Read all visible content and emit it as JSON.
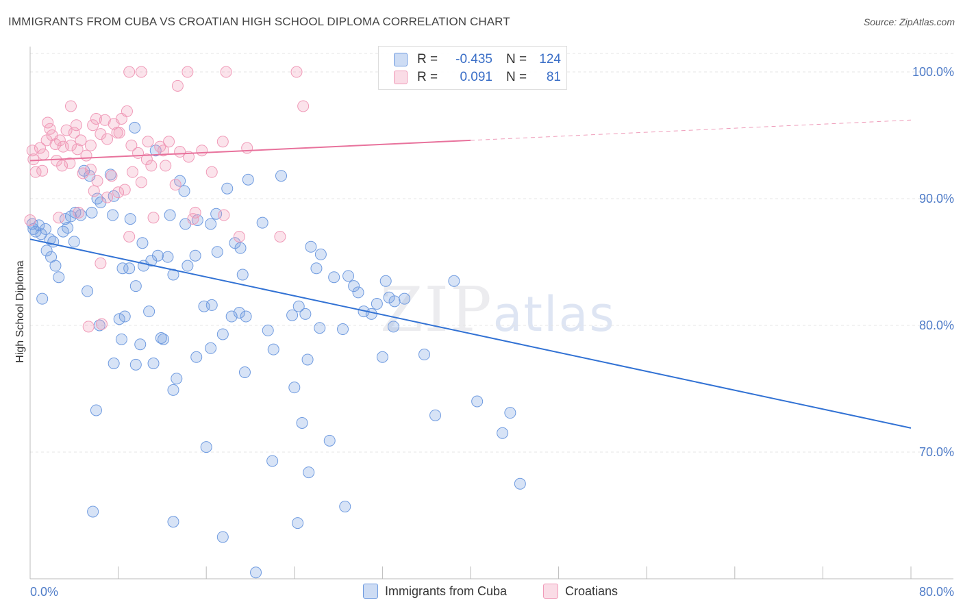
{
  "header": {
    "title": "IMMIGRANTS FROM CUBA VS CROATIAN HIGH SCHOOL DIPLOMA CORRELATION CHART",
    "source": "Source: ZipAtlas.com"
  },
  "legend": {
    "rows": [
      {
        "r_label": "R =",
        "r_value": "-0.435",
        "n_label": "N =",
        "n_value": "124",
        "color": "#6f9be0"
      },
      {
        "r_label": "R =",
        "r_value": "0.091",
        "n_label": "N =",
        "n_value": "81",
        "color": "#f09ab8"
      }
    ]
  },
  "bottom_legend": {
    "items": [
      {
        "label": "Immigrants from Cuba",
        "color": "#6f9be0"
      },
      {
        "label": "Croatians",
        "color": "#f09ab8"
      }
    ]
  },
  "watermark": {
    "zip": "ZIP",
    "atlas": "atlas"
  },
  "chart_data": {
    "type": "scatter",
    "title": "IMMIGRANTS FROM CUBA VS CROATIAN HIGH SCHOOL DIPLOMA CORRELATION CHART",
    "xlabel": "",
    "ylabel": "High School Diploma",
    "xlim": [
      0,
      80
    ],
    "ylim": [
      60,
      102
    ],
    "x_tick_labels": [
      "0.0%",
      "80.0%"
    ],
    "y_ticks": [
      70,
      80,
      90,
      100
    ],
    "y_tick_labels": [
      "70.0%",
      "80.0%",
      "90.0%",
      "100.0%"
    ],
    "grid": true,
    "legend_position": "top-center",
    "series": [
      {
        "name": "Immigrants from Cuba",
        "color": "#6f9be0",
        "trend": {
          "x0": 0,
          "y0": 86.8,
          "x1": 80,
          "y1": 71.9
        },
        "points": [
          [
            0.2,
            88.0
          ],
          [
            0.3,
            87.6
          ],
          [
            0.5,
            87.4
          ],
          [
            0.8,
            87.9
          ],
          [
            1.0,
            87.2
          ],
          [
            1.4,
            87.6
          ],
          [
            1.1,
            82.1
          ],
          [
            1.8,
            86.8
          ],
          [
            2.1,
            86.6
          ],
          [
            1.5,
            85.9
          ],
          [
            1.9,
            85.4
          ],
          [
            2.3,
            84.7
          ],
          [
            3.0,
            87.4
          ],
          [
            3.2,
            88.4
          ],
          [
            3.4,
            87.7
          ],
          [
            3.7,
            88.6
          ],
          [
            4.1,
            88.9
          ],
          [
            4.6,
            88.7
          ],
          [
            4.0,
            86.6
          ],
          [
            2.6,
            83.8
          ],
          [
            4.9,
            92.2
          ],
          [
            5.4,
            91.8
          ],
          [
            7.3,
            91.9
          ],
          [
            9.5,
            95.6
          ],
          [
            11.4,
            93.8
          ],
          [
            13.6,
            91.4
          ],
          [
            14.0,
            90.6
          ],
          [
            17.9,
            90.8
          ],
          [
            19.8,
            91.5
          ],
          [
            22.8,
            91.8
          ],
          [
            6.1,
            90.0
          ],
          [
            6.4,
            89.7
          ],
          [
            7.6,
            90.2
          ],
          [
            9.1,
            88.4
          ],
          [
            12.7,
            88.7
          ],
          [
            14.1,
            88.0
          ],
          [
            15.2,
            88.3
          ],
          [
            16.4,
            88.0
          ],
          [
            16.9,
            88.8
          ],
          [
            21.1,
            88.1
          ],
          [
            5.6,
            88.9
          ],
          [
            7.5,
            88.7
          ],
          [
            10.2,
            86.5
          ],
          [
            11.0,
            85.1
          ],
          [
            11.6,
            85.5
          ],
          [
            12.5,
            85.4
          ],
          [
            13.0,
            84.0
          ],
          [
            14.3,
            84.7
          ],
          [
            15.0,
            85.5
          ],
          [
            17.0,
            85.8
          ],
          [
            18.6,
            86.5
          ],
          [
            19.1,
            86.1
          ],
          [
            19.3,
            84.0
          ],
          [
            25.5,
            86.2
          ],
          [
            26.0,
            84.5
          ],
          [
            26.4,
            85.6
          ],
          [
            27.6,
            83.8
          ],
          [
            28.9,
            83.9
          ],
          [
            29.4,
            83.1
          ],
          [
            32.3,
            83.5
          ],
          [
            5.2,
            82.7
          ],
          [
            6.3,
            80.0
          ],
          [
            8.4,
            84.5
          ],
          [
            9.0,
            84.5
          ],
          [
            10.3,
            84.7
          ],
          [
            9.6,
            83.1
          ],
          [
            10.8,
            81.1
          ],
          [
            15.8,
            81.5
          ],
          [
            16.5,
            81.6
          ],
          [
            18.3,
            80.7
          ],
          [
            19.0,
            81.0
          ],
          [
            24.4,
            81.5
          ],
          [
            25.0,
            80.9
          ],
          [
            26.3,
            79.8
          ],
          [
            28.4,
            79.7
          ],
          [
            30.3,
            81.1
          ],
          [
            31.5,
            81.7
          ],
          [
            32.6,
            82.2
          ],
          [
            33.1,
            81.9
          ],
          [
            38.5,
            83.5
          ],
          [
            11.9,
            79.0
          ],
          [
            12.1,
            78.9
          ],
          [
            16.4,
            78.2
          ],
          [
            17.5,
            79.3
          ],
          [
            21.6,
            79.6
          ],
          [
            8.3,
            78.9
          ],
          [
            10.0,
            78.5
          ],
          [
            9.6,
            76.9
          ],
          [
            7.6,
            77.0
          ],
          [
            15.1,
            77.5
          ],
          [
            19.5,
            76.3
          ],
          [
            25.2,
            77.3
          ],
          [
            32.0,
            77.5
          ],
          [
            35.8,
            77.7
          ],
          [
            11.2,
            77.0
          ],
          [
            13.3,
            75.8
          ],
          [
            13.0,
            74.9
          ],
          [
            24.0,
            75.1
          ],
          [
            6.0,
            73.3
          ],
          [
            36.8,
            72.9
          ],
          [
            40.6,
            74.0
          ],
          [
            43.6,
            73.1
          ],
          [
            42.9,
            71.5
          ],
          [
            24.7,
            72.3
          ],
          [
            27.2,
            70.9
          ],
          [
            22.0,
            69.3
          ],
          [
            16.0,
            70.4
          ],
          [
            25.3,
            68.4
          ],
          [
            44.5,
            67.5
          ],
          [
            28.6,
            65.7
          ],
          [
            5.7,
            65.3
          ],
          [
            13.0,
            64.5
          ],
          [
            24.3,
            64.4
          ],
          [
            17.5,
            63.3
          ],
          [
            20.5,
            60.5
          ],
          [
            34.0,
            82.1
          ],
          [
            29.8,
            82.6
          ],
          [
            31.0,
            80.9
          ],
          [
            19.6,
            80.7
          ],
          [
            23.8,
            80.8
          ],
          [
            8.1,
            80.5
          ],
          [
            8.6,
            80.7
          ],
          [
            33.0,
            79.9
          ],
          [
            22.1,
            78.1
          ]
        ]
      },
      {
        "name": "Croatians",
        "color": "#f09ab8",
        "trend": {
          "x0": 0,
          "y0": 93.0,
          "x1": 40,
          "y1": 94.6
        },
        "points": [
          [
            0.2,
            93.8
          ],
          [
            0.3,
            93.1
          ],
          [
            0.5,
            92.1
          ],
          [
            0.9,
            94.0
          ],
          [
            1.2,
            93.5
          ],
          [
            1.5,
            94.6
          ],
          [
            1.8,
            95.5
          ],
          [
            2.0,
            95.0
          ],
          [
            2.3,
            94.3
          ],
          [
            2.7,
            94.6
          ],
          [
            3.0,
            94.1
          ],
          [
            3.3,
            95.4
          ],
          [
            3.7,
            94.2
          ],
          [
            4.0,
            95.2
          ],
          [
            4.3,
            93.9
          ],
          [
            4.6,
            94.6
          ],
          [
            5.1,
            93.4
          ],
          [
            5.5,
            94.2
          ],
          [
            6.0,
            96.3
          ],
          [
            6.4,
            95.1
          ],
          [
            7.0,
            94.7
          ],
          [
            7.6,
            95.9
          ],
          [
            8.1,
            95.2
          ],
          [
            8.8,
            96.9
          ],
          [
            9.2,
            94.2
          ],
          [
            9.8,
            93.6
          ],
          [
            10.7,
            94.5
          ],
          [
            11.8,
            94.1
          ],
          [
            12.3,
            92.6
          ],
          [
            13.6,
            93.7
          ],
          [
            1.1,
            92.2
          ],
          [
            2.4,
            93.0
          ],
          [
            2.9,
            92.6
          ],
          [
            3.6,
            92.8
          ],
          [
            4.8,
            92.0
          ],
          [
            5.5,
            92.3
          ],
          [
            6.1,
            91.4
          ],
          [
            7.4,
            91.8
          ],
          [
            8.0,
            90.5
          ],
          [
            9.3,
            92.1
          ],
          [
            10.1,
            91.3
          ],
          [
            10.6,
            93.1
          ],
          [
            11.0,
            92.6
          ],
          [
            13.2,
            91.1
          ],
          [
            15.6,
            93.8
          ],
          [
            16.5,
            92.1
          ],
          [
            2.6,
            88.5
          ],
          [
            4.4,
            88.9
          ],
          [
            5.8,
            90.6
          ],
          [
            7.0,
            90.1
          ],
          [
            8.6,
            90.7
          ],
          [
            11.2,
            88.5
          ],
          [
            15.0,
            88.9
          ],
          [
            17.6,
            88.7
          ],
          [
            9.0,
            87.0
          ],
          [
            6.4,
            84.9
          ],
          [
            5.3,
            79.9
          ],
          [
            6.5,
            80.1
          ],
          [
            9.0,
            100.0
          ],
          [
            10.1,
            100.0
          ],
          [
            14.3,
            100.0
          ],
          [
            17.8,
            100.0
          ],
          [
            24.2,
            100.0
          ],
          [
            13.4,
            98.9
          ],
          [
            24.8,
            97.3
          ],
          [
            3.7,
            97.3
          ],
          [
            1.6,
            96.0
          ],
          [
            4.2,
            95.8
          ],
          [
            7.9,
            95.2
          ],
          [
            12.1,
            93.8
          ],
          [
            17.5,
            94.5
          ],
          [
            19.7,
            94.0
          ],
          [
            5.7,
            95.8
          ],
          [
            6.8,
            96.2
          ],
          [
            8.3,
            96.3
          ],
          [
            14.8,
            88.4
          ],
          [
            19.0,
            87.0
          ],
          [
            22.7,
            87.0
          ],
          [
            12.6,
            94.5
          ],
          [
            14.4,
            93.3
          ],
          [
            0.0,
            88.3
          ]
        ]
      }
    ]
  }
}
